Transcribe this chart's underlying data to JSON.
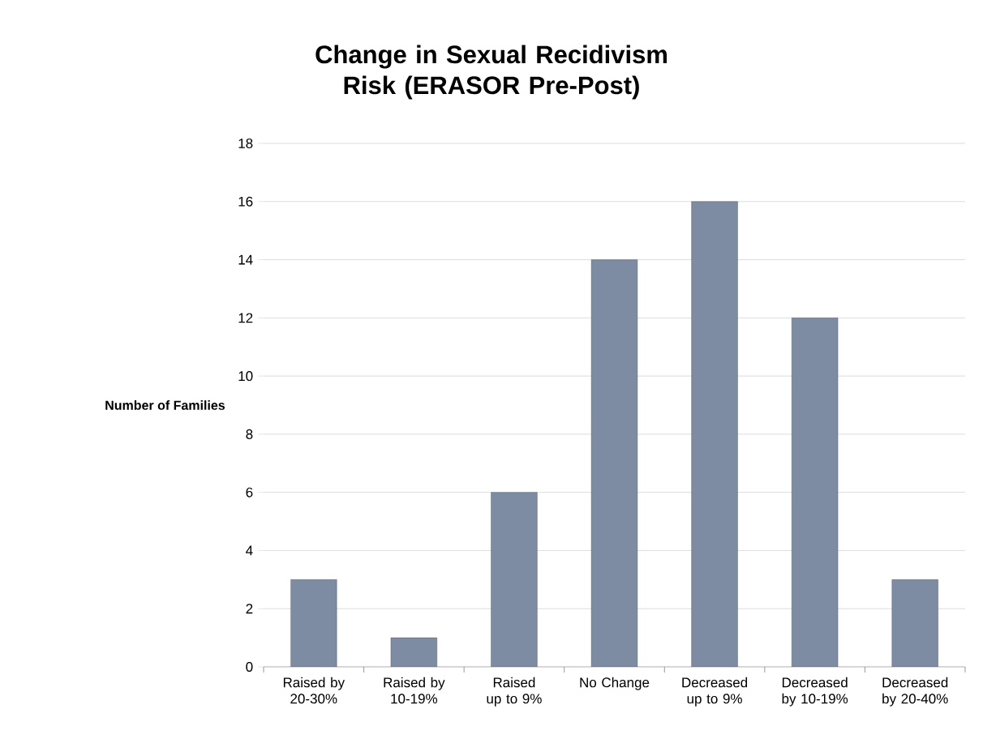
{
  "chart_data": {
    "type": "bar",
    "title": "Change in Sexual Recidivism Risk (ERASOR Pre-Post)",
    "ylabel": "Number of Families",
    "categories": [
      "Raised by 20-30%",
      "Raised by 10-19%",
      "Raised up to 9%",
      "No Change",
      "Decreased up to 9%",
      "Decreased by 10-19%",
      "Decreased by 20-40%"
    ],
    "values": [
      3,
      1,
      6,
      14,
      16,
      12,
      3
    ],
    "color": "#7d8ca3",
    "ylim": [
      0,
      18
    ],
    "yticks": [
      0,
      2,
      4,
      6,
      8,
      10,
      12,
      14,
      16,
      18
    ],
    "grid": "y"
  }
}
